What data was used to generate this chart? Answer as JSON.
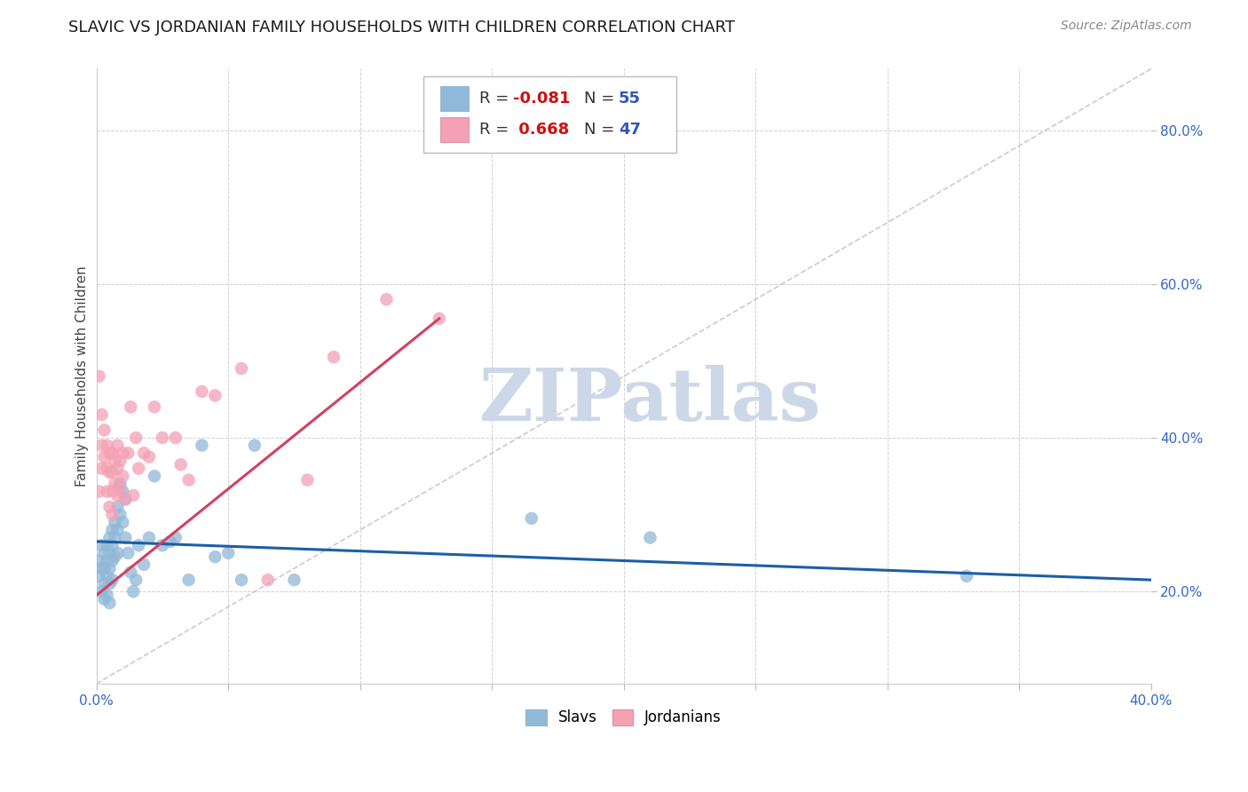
{
  "title": "SLAVIC VS JORDANIAN FAMILY HOUSEHOLDS WITH CHILDREN CORRELATION CHART",
  "source": "Source: ZipAtlas.com",
  "ylabel": "Family Households with Children",
  "xlim": [
    0.0,
    0.4
  ],
  "ylim": [
    0.08,
    0.88
  ],
  "yticks": [
    0.2,
    0.4,
    0.6,
    0.8
  ],
  "ytick_labels": [
    "20.0%",
    "40.0%",
    "60.0%",
    "80.0%"
  ],
  "xticks": [
    0.0,
    0.05,
    0.1,
    0.15,
    0.2,
    0.25,
    0.3,
    0.35,
    0.4
  ],
  "xtick_labels": [
    "0.0%",
    "",
    "",
    "",
    "",
    "",
    "",
    "",
    "40.0%"
  ],
  "slavs_R": -0.081,
  "slavs_N": 55,
  "jordanians_R": 0.668,
  "jordanians_N": 47,
  "slavs_color": "#90b8d8",
  "jordanians_color": "#f4a0b5",
  "slavs_line_color": "#1a5fa8",
  "jordanians_line_color": "#d44060",
  "ref_line_color": "#ccbbcc",
  "watermark_color": "#ccd8e8",
  "background_color": "#ffffff",
  "grid_color": "#d0d0d0",
  "title_fontsize": 13,
  "source_fontsize": 10,
  "axis_label_fontsize": 11,
  "tick_fontsize": 11,
  "legend_fontsize": 13,
  "slavs_x": [
    0.001,
    0.001,
    0.002,
    0.002,
    0.002,
    0.003,
    0.003,
    0.003,
    0.003,
    0.004,
    0.004,
    0.004,
    0.004,
    0.005,
    0.005,
    0.005,
    0.005,
    0.005,
    0.006,
    0.006,
    0.006,
    0.006,
    0.007,
    0.007,
    0.007,
    0.008,
    0.008,
    0.008,
    0.009,
    0.009,
    0.01,
    0.01,
    0.011,
    0.011,
    0.012,
    0.013,
    0.014,
    0.015,
    0.016,
    0.018,
    0.02,
    0.022,
    0.025,
    0.028,
    0.03,
    0.035,
    0.04,
    0.045,
    0.05,
    0.055,
    0.06,
    0.075,
    0.165,
    0.21,
    0.33
  ],
  "slavs_y": [
    0.24,
    0.22,
    0.26,
    0.23,
    0.2,
    0.25,
    0.23,
    0.21,
    0.19,
    0.26,
    0.24,
    0.22,
    0.195,
    0.27,
    0.25,
    0.23,
    0.21,
    0.185,
    0.28,
    0.26,
    0.24,
    0.215,
    0.29,
    0.27,
    0.245,
    0.31,
    0.28,
    0.25,
    0.34,
    0.3,
    0.33,
    0.29,
    0.32,
    0.27,
    0.25,
    0.225,
    0.2,
    0.215,
    0.26,
    0.235,
    0.27,
    0.35,
    0.26,
    0.265,
    0.27,
    0.215,
    0.39,
    0.245,
    0.25,
    0.215,
    0.39,
    0.215,
    0.295,
    0.27,
    0.22
  ],
  "jordanians_x": [
    0.001,
    0.001,
    0.002,
    0.002,
    0.002,
    0.003,
    0.003,
    0.004,
    0.004,
    0.004,
    0.005,
    0.005,
    0.005,
    0.006,
    0.006,
    0.006,
    0.006,
    0.007,
    0.007,
    0.008,
    0.008,
    0.008,
    0.009,
    0.009,
    0.01,
    0.01,
    0.011,
    0.012,
    0.013,
    0.014,
    0.015,
    0.016,
    0.018,
    0.02,
    0.022,
    0.025,
    0.03,
    0.032,
    0.035,
    0.04,
    0.045,
    0.055,
    0.065,
    0.08,
    0.09,
    0.11,
    0.13
  ],
  "jordanians_y": [
    0.48,
    0.33,
    0.43,
    0.39,
    0.36,
    0.41,
    0.375,
    0.39,
    0.36,
    0.33,
    0.38,
    0.355,
    0.31,
    0.38,
    0.355,
    0.33,
    0.3,
    0.37,
    0.34,
    0.39,
    0.36,
    0.325,
    0.37,
    0.335,
    0.38,
    0.35,
    0.32,
    0.38,
    0.44,
    0.325,
    0.4,
    0.36,
    0.38,
    0.375,
    0.44,
    0.4,
    0.4,
    0.365,
    0.345,
    0.46,
    0.455,
    0.49,
    0.215,
    0.345,
    0.505,
    0.58,
    0.555
  ],
  "slavs_line_x0": 0.0,
  "slavs_line_x1": 0.4,
  "slavs_line_y0": 0.265,
  "slavs_line_y1": 0.215,
  "jordanians_line_x0": 0.0,
  "jordanians_line_x1": 0.13,
  "jordanians_line_y0": 0.195,
  "jordanians_line_y1": 0.555,
  "ref_line_x0": 0.0,
  "ref_line_x1": 0.4,
  "ref_line_y0": 0.08,
  "ref_line_y1": 0.88
}
